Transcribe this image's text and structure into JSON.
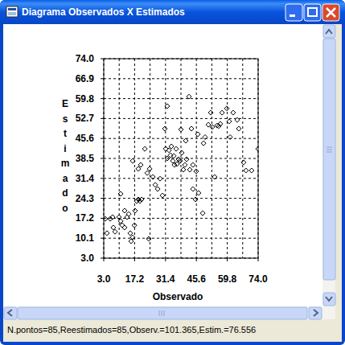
{
  "window": {
    "title": "Diagrama Observados X Estimados",
    "status": "N.pontos=85,Reestimados=85,Observ.=101.365,Estim.=76.556"
  },
  "chart_data": {
    "type": "scatter",
    "x_label": "Observado",
    "y_label": "Estimado",
    "marker": "diamond",
    "color": "#000000",
    "grid": true,
    "xlim": [
      3.0,
      74.0
    ],
    "ylim": [
      3.0,
      74.0
    ],
    "xticks": [
      {
        "value": 3.0,
        "label": "3.0"
      },
      17.2,
      31.4,
      45.6,
      59.8,
      {
        "value": 74.0,
        "label": "74.0"
      }
    ],
    "yticks": [
      {
        "value": 3.0,
        "label": "3.0"
      },
      10.1,
      17.2,
      24.3,
      31.4,
      38.5,
      45.6,
      52.7,
      59.8,
      66.9,
      {
        "value": 74.0,
        "label": "74.0"
      }
    ],
    "x": [
      3.7,
      4.5,
      6.0,
      7.1,
      7.4,
      8.2,
      10.0,
      10.8,
      11.5,
      12.6,
      13.7,
      14.5,
      15.2,
      15.6,
      16.3,
      17.1,
      10.8,
      12.6,
      17.4,
      18.2,
      18.9,
      19.6,
      20.4,
      16.3,
      18.9,
      20.0,
      21.9,
      23.0,
      24.1,
      25.6,
      26.7,
      27.8,
      28.9,
      23.7,
      30.0,
      31.5,
      32.2,
      33.0,
      33.7,
      34.1,
      34.8,
      35.2,
      35.5,
      36.3,
      36.7,
      37.4,
      38.1,
      38.9,
      39.6,
      40.3,
      41.1,
      42.6,
      44.0,
      45.5,
      45.2,
      48.5,
      32.2,
      31.1,
      38.5,
      40.7,
      42.2,
      43.3,
      44.0,
      46.3,
      46.6,
      48.9,
      49.6,
      51.1,
      52.2,
      52.9,
      54.0,
      55.1,
      55.9,
      56.6,
      57.4,
      59.6,
      60.7,
      61.1,
      62.5,
      64.4,
      65.1,
      67.3,
      68.4,
      71.0,
      74.0
    ],
    "values": [
      17.0,
      11.9,
      17.0,
      17.6,
      13.9,
      12.4,
      17.6,
      16.2,
      14.7,
      13.9,
      17.6,
      18.7,
      11.9,
      9.0,
      10.4,
      14.7,
      25.9,
      19.9,
      19.9,
      23.3,
      23.9,
      23.3,
      23.9,
      37.6,
      34.8,
      36.2,
      41.9,
      33.3,
      34.8,
      31.9,
      29.1,
      27.6,
      31.3,
      9.9,
      25.3,
      41.9,
      38.5,
      41.4,
      39.6,
      42.8,
      37.6,
      39.4,
      36.2,
      41.9,
      36.5,
      38.2,
      37.6,
      40.5,
      34.5,
      36.2,
      38.2,
      34.5,
      36.2,
      33.9,
      23.9,
      19.0,
      57.1,
      49.1,
      48.8,
      44.8,
      60.5,
      49.1,
      27.6,
      47.1,
      26.2,
      43.9,
      46.1,
      50.5,
      54.8,
      49.7,
      31.9,
      50.2,
      50.0,
      50.8,
      54.8,
      56.3,
      51.7,
      46.1,
      54.8,
      52.2,
      49.1,
      37.1,
      34.2,
      34.2,
      41.9
    ]
  }
}
